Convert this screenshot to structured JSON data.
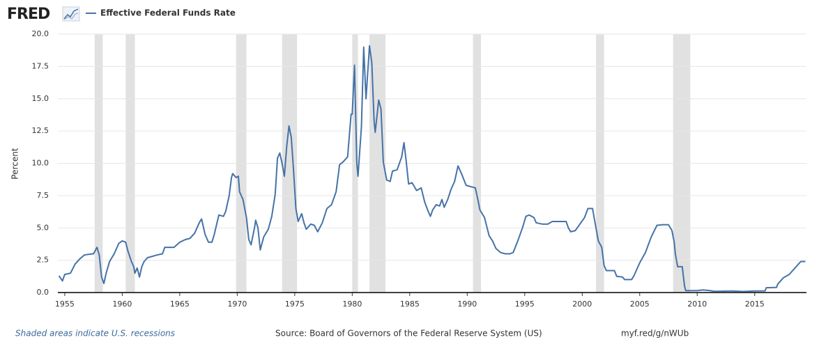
{
  "logo": "FRED",
  "chart_data": {
    "type": "line",
    "ylabel": "Percent",
    "recession_note": "Shaded areas indicate U.S. recessions",
    "source": "Source: Board of Governors of the Federal Reserve System (US)",
    "link": "myf.red/g/nWUb",
    "grid": true,
    "xlim": [
      1954.4,
      2019.5
    ],
    "ylim": [
      0,
      20
    ],
    "xticks": [
      1955,
      1960,
      1965,
      1970,
      1975,
      1980,
      1985,
      1990,
      1995,
      2000,
      2005,
      2010,
      2015
    ],
    "yticks": [
      {
        "value": 0,
        "label": "0.0"
      },
      2.5,
      {
        "value": 5,
        "label": "5.0"
      },
      7.5,
      {
        "value": 10,
        "label": "10.0"
      },
      12.5,
      {
        "value": 15,
        "label": "15.0"
      },
      17.5,
      {
        "value": 20,
        "label": "20.0"
      }
    ],
    "recessions": [
      [
        1957.6,
        1958.3
      ],
      [
        1960.3,
        1961.1
      ],
      [
        1969.9,
        1970.8
      ],
      [
        1973.9,
        1975.2
      ],
      [
        1980.0,
        1980.5
      ],
      [
        1981.5,
        1982.9
      ],
      [
        1990.5,
        1991.2
      ],
      [
        2001.2,
        2001.9
      ],
      [
        2007.9,
        2009.4
      ]
    ],
    "recession_color": "#e1e1e1",
    "x": [
      1954.5,
      1954.8,
      1955.0,
      1955.5,
      1955.9,
      1956.3,
      1956.7,
      1957.0,
      1957.5,
      1957.8,
      1958.0,
      1958.2,
      1958.4,
      1958.6,
      1958.9,
      1959.3,
      1959.7,
      1960.0,
      1960.3,
      1960.5,
      1960.8,
      1961.0,
      1961.1,
      1961.3,
      1961.5,
      1961.7,
      1961.9,
      1962.2,
      1962.6,
      1963.0,
      1963.5,
      1963.7,
      1964.0,
      1964.5,
      1965.0,
      1965.5,
      1965.9,
      1966.3,
      1966.7,
      1966.9,
      1967.2,
      1967.5,
      1967.8,
      1968.0,
      1968.4,
      1968.8,
      1969.0,
      1969.3,
      1969.5,
      1969.6,
      1969.9,
      1970.1,
      1970.2,
      1970.5,
      1970.8,
      1971.0,
      1971.2,
      1971.5,
      1971.6,
      1971.8,
      1972.0,
      1972.3,
      1972.7,
      1973.0,
      1973.3,
      1973.5,
      1973.7,
      1973.9,
      1974.1,
      1974.3,
      1974.5,
      1974.7,
      1974.9,
      1975.1,
      1975.3,
      1975.6,
      1975.8,
      1976.0,
      1976.4,
      1976.7,
      1977.0,
      1977.4,
      1977.8,
      1978.2,
      1978.6,
      1978.9,
      1979.2,
      1979.6,
      1979.9,
      1980.0,
      1980.2,
      1980.4,
      1980.5,
      1980.8,
      1981.0,
      1981.2,
      1981.5,
      1981.7,
      1981.9,
      1982.0,
      1982.3,
      1982.5,
      1982.7,
      1983.0,
      1983.3,
      1983.5,
      1983.9,
      1984.3,
      1984.5,
      1984.7,
      1984.9,
      1985.2,
      1985.6,
      1986.0,
      1986.3,
      1986.6,
      1986.8,
      1987.0,
      1987.3,
      1987.6,
      1987.8,
      1988.0,
      1988.3,
      1988.6,
      1988.9,
      1989.2,
      1989.5,
      1989.9,
      1990.3,
      1990.7,
      1990.9,
      1991.1,
      1991.5,
      1991.9,
      1992.2,
      1992.5,
      1992.9,
      1993.3,
      1993.7,
      1994.0,
      1994.4,
      1994.8,
      1995.1,
      1995.4,
      1995.8,
      1996.0,
      1996.5,
      1997.0,
      1997.4,
      1998.0,
      1998.6,
      1998.8,
      1999.0,
      1999.4,
      1999.8,
      2000.2,
      2000.5,
      2000.9,
      2001.1,
      2001.4,
      2001.7,
      2001.9,
      2002.1,
      2002.8,
      2003.0,
      2003.5,
      2003.7,
      2004.3,
      2004.5,
      2005.0,
      2005.5,
      2006.0,
      2006.5,
      2007.0,
      2007.5,
      2007.8,
      2008.0,
      2008.1,
      2008.3,
      2008.7,
      2008.9,
      2009.0,
      2010.0,
      2010.5,
      2011.0,
      2011.5,
      2012.0,
      2013.0,
      2014.0,
      2015.0,
      2015.9,
      2016.0,
      2016.9,
      2017.0,
      2017.5,
      2018.0,
      2018.5,
      2019.0,
      2019.4
    ],
    "series": [
      {
        "name": "Effective Federal Funds Rate",
        "color": "#4572a7",
        "values": [
          1.3,
          0.9,
          1.4,
          1.5,
          2.2,
          2.6,
          2.9,
          2.95,
          3.0,
          3.5,
          2.9,
          1.2,
          0.7,
          1.5,
          2.4,
          3.0,
          3.8,
          4.0,
          3.9,
          3.2,
          2.4,
          2.0,
          1.5,
          1.9,
          1.2,
          2.0,
          2.4,
          2.7,
          2.8,
          2.9,
          3.0,
          3.5,
          3.5,
          3.5,
          3.9,
          4.1,
          4.2,
          4.6,
          5.4,
          5.7,
          4.5,
          3.9,
          3.9,
          4.5,
          6.0,
          5.9,
          6.3,
          7.5,
          8.9,
          9.2,
          8.9,
          9.0,
          7.8,
          7.2,
          5.8,
          4.1,
          3.7,
          5.0,
          5.6,
          5.0,
          3.3,
          4.3,
          4.9,
          5.9,
          7.6,
          10.4,
          10.8,
          10.0,
          9.0,
          11.3,
          12.9,
          12.0,
          9.4,
          6.5,
          5.5,
          6.1,
          5.4,
          4.9,
          5.3,
          5.2,
          4.7,
          5.4,
          6.5,
          6.8,
          7.8,
          9.9,
          10.1,
          10.5,
          13.8,
          13.8,
          17.6,
          10.0,
          9.0,
          12.8,
          19.0,
          15.0,
          19.1,
          17.8,
          13.3,
          12.4,
          14.9,
          14.2,
          10.1,
          8.7,
          8.6,
          9.4,
          9.5,
          10.5,
          11.6,
          10.1,
          8.4,
          8.5,
          7.9,
          8.1,
          7.0,
          6.3,
          5.9,
          6.4,
          6.8,
          6.7,
          7.2,
          6.6,
          7.2,
          8.0,
          8.6,
          9.8,
          9.2,
          8.3,
          8.2,
          8.1,
          7.3,
          6.4,
          5.8,
          4.4,
          4.0,
          3.4,
          3.1,
          3.0,
          3.0,
          3.1,
          4.0,
          5.0,
          5.9,
          6.0,
          5.8,
          5.4,
          5.3,
          5.3,
          5.5,
          5.5,
          5.5,
          5.0,
          4.7,
          4.8,
          5.3,
          5.8,
          6.5,
          6.5,
          5.5,
          4.0,
          3.5,
          2.1,
          1.7,
          1.7,
          1.25,
          1.2,
          1.0,
          1.0,
          1.3,
          2.3,
          3.1,
          4.3,
          5.2,
          5.25,
          5.25,
          4.8,
          3.9,
          3.0,
          2.0,
          2.0,
          0.5,
          0.15,
          0.15,
          0.2,
          0.16,
          0.09,
          0.1,
          0.12,
          0.08,
          0.12,
          0.13,
          0.37,
          0.4,
          0.65,
          1.15,
          1.4,
          1.9,
          2.4,
          2.4
        ]
      }
    ]
  }
}
